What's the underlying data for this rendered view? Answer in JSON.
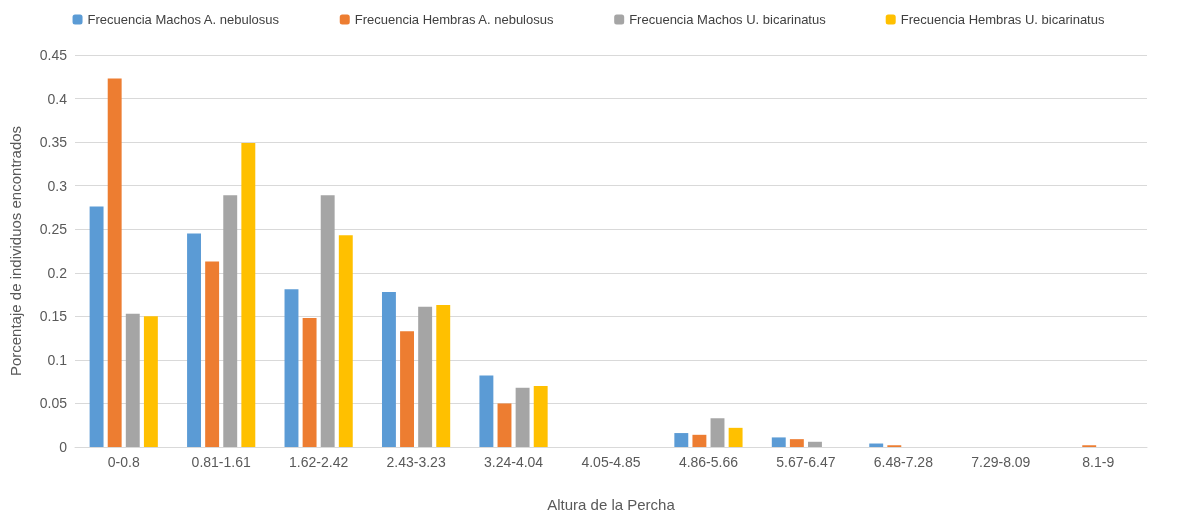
{
  "chart_data": {
    "type": "bar",
    "xlabel": "Altura de la Percha",
    "ylabel": "Porcentaje de individuos encontrados",
    "categories": [
      "0-0.8",
      "0.81-1.61",
      "1.62-2.42",
      "2.43-3.23",
      "3.24-4.04",
      "4.05-4.85",
      "4.86-5.66",
      "5.67-6.47",
      "6.48-7.28",
      "7.29-8.09",
      "8.1-9"
    ],
    "series": [
      {
        "name": "Frecuencia Machos A. nebulosus",
        "color": "#5b9bd5",
        "values": [
          0.276,
          0.245,
          0.181,
          0.178,
          0.082,
          0,
          0.016,
          0.011,
          0.004,
          0,
          0
        ]
      },
      {
        "name": "Frecuencia Hembras A. nebulosus",
        "color": "#ed7d31",
        "values": [
          0.423,
          0.213,
          0.148,
          0.133,
          0.05,
          0,
          0.014,
          0.009,
          0.002,
          0,
          0.002
        ]
      },
      {
        "name": "Frecuencia Machos U. bicarinatus",
        "color": "#a5a5a5",
        "values": [
          0.153,
          0.289,
          0.289,
          0.161,
          0.068,
          0,
          0.033,
          0.006,
          0,
          0,
          0
        ]
      },
      {
        "name": "Frecuencia Hembras U. bicarinatus",
        "color": "#ffc000",
        "values": [
          0.15,
          0.349,
          0.243,
          0.163,
          0.07,
          0,
          0.022,
          0,
          0,
          0,
          0
        ]
      }
    ],
    "ylim": [
      0,
      0.45
    ],
    "yticks": [
      0,
      0.05,
      0.1,
      0.15,
      0.2,
      0.25,
      0.3,
      0.35,
      0.4,
      0.45
    ],
    "grid": "y",
    "legend": "top"
  }
}
